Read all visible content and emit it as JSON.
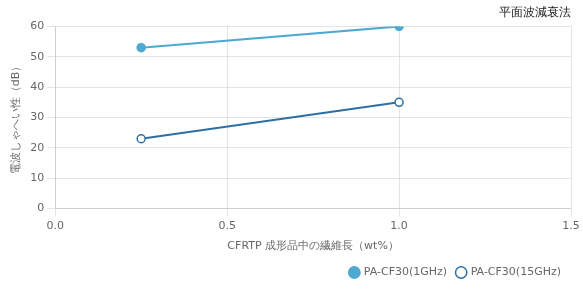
{
  "chart_data": {
    "type": "line",
    "xlabel": "CFRTP 成形品中の繊維長（wt%）",
    "ylabel": "電波しゃへい性（dB）",
    "annotation": "平面波減衰法",
    "x": [
      0.25,
      1.0
    ],
    "series": [
      {
        "name": "PA-CF30(1GHz)",
        "color": "#4ea8d2",
        "values": [
          53,
          60
        ],
        "marker": "circle"
      },
      {
        "name": "PA-CF30(15GHz)",
        "color": "#2e6fa3",
        "values": [
          23,
          35
        ],
        "marker": "open-circle"
      }
    ],
    "xlim": [
      0,
      1.5
    ],
    "xticks": [
      {
        "value": 0,
        "label": "0.0"
      },
      0.5,
      {
        "value": 1.0,
        "label": "1.0"
      },
      1.5
    ],
    "ylim": [
      0,
      60
    ],
    "yticks": [
      0,
      10,
      20,
      30,
      40,
      50,
      60
    ],
    "grid": true,
    "legend": "lower right"
  }
}
